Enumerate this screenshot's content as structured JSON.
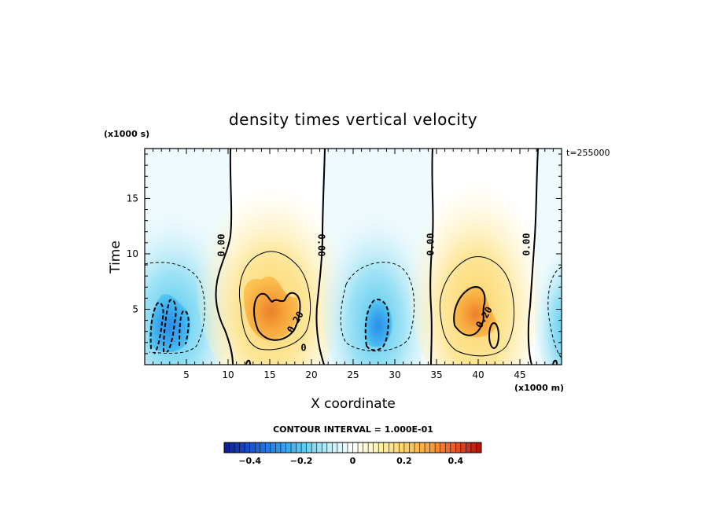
{
  "chart_data": {
    "type": "heatmap",
    "title": "density times vertical velocity",
    "xlabel": "X coordinate",
    "ylabel": "Time",
    "x_units": "(x1000 m)",
    "y_units": "(x1000 s)",
    "timestamp": "t=255000",
    "xlim": [
      0,
      50
    ],
    "ylim": [
      0,
      19.5
    ],
    "x_ticks": [
      5,
      10,
      15,
      20,
      25,
      30,
      35,
      40,
      45
    ],
    "y_ticks": [
      5,
      10,
      15
    ],
    "contour_interval_text": "CONTOUR INTERVAL = 1.000E-01",
    "contour_labels": [
      "0.00",
      "0.00",
      "0.00",
      "0.00",
      "0.20",
      "0.20",
      "0"
    ],
    "colorbar": {
      "range": [
        -0.5,
        0.5
      ],
      "ticks": [
        -0.4,
        -0.2,
        0,
        0.2,
        0.4
      ],
      "tick_labels": [
        "-0.4",
        "-0.2",
        "0",
        "0.2",
        "0.4"
      ],
      "colors": [
        "#0b1a8c",
        "#1a4fd0",
        "#2a8ee8",
        "#56c8f0",
        "#b8ecf6",
        "#ffffff",
        "#fff3b0",
        "#fcd36a",
        "#f6a23a",
        "#e8542a",
        "#b0100a"
      ]
    },
    "features": [
      {
        "sign": "negative",
        "x_center": 3.5,
        "y_center": 4.5,
        "peak": -0.32
      },
      {
        "sign": "positive",
        "x_center": 15.5,
        "y_center": 4.5,
        "peak": 0.28
      },
      {
        "sign": "negative",
        "x_center": 28.0,
        "y_center": 3.5,
        "peak": -0.3
      },
      {
        "sign": "positive",
        "x_center": 39.5,
        "y_center": 4.5,
        "peak": 0.3
      },
      {
        "sign": "negative",
        "x_center": 50.0,
        "y_center": 7.0,
        "peak": -0.15
      }
    ]
  }
}
